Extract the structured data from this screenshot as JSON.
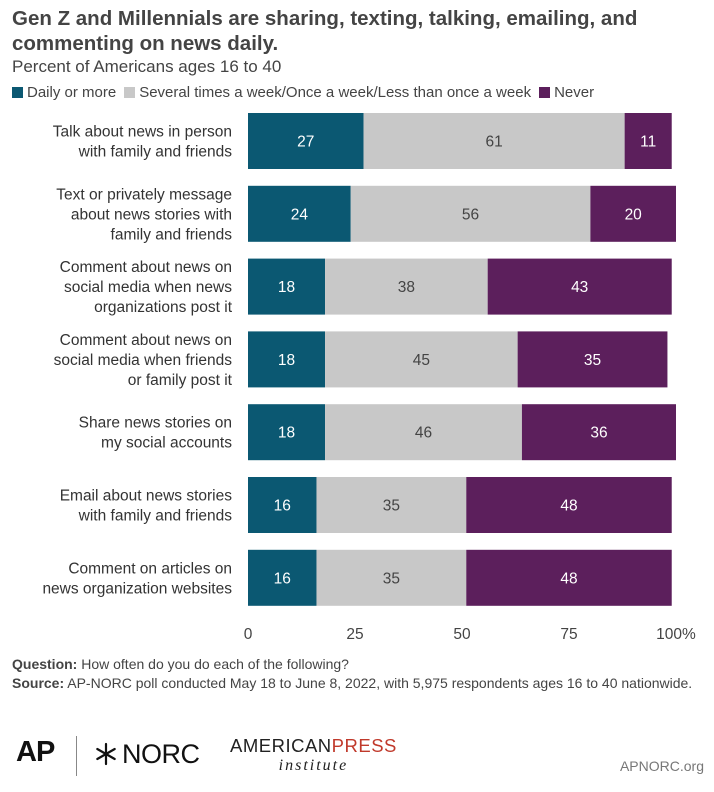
{
  "title": "Gen Z and Millennials are sharing, texting, talking, emailing, and commenting on news daily.",
  "subtitle": "Percent of Americans ages 16 to 40",
  "legend": [
    {
      "label": "Daily or more",
      "color": "#0b5872"
    },
    {
      "label": "Several times a week/Once a week/Less than once a week",
      "color": "#c8c8c8"
    },
    {
      "label": "Never",
      "color": "#5c1f5c"
    }
  ],
  "chart_data": {
    "type": "bar",
    "orientation": "horizontal",
    "stacked": true,
    "categories": [
      "Talk about news in person\nwith family and friends",
      "Text or privately message\nabout news stories with\nfamily and friends",
      "Comment about news on\nsocial media when news\norganizations post it",
      "Comment about news on\nsocial media when friends\nor family post it",
      "Share news stories on\nmy social accounts",
      "Email about news stories\nwith family and friends",
      "Comment on articles on\nnews organization websites"
    ],
    "series": [
      {
        "name": "Daily or more",
        "color": "#0b5872",
        "values": [
          27,
          24,
          18,
          18,
          18,
          16,
          16
        ]
      },
      {
        "name": "Several times a week/Once a week/Less than once a week",
        "color": "#c8c8c8",
        "values": [
          61,
          56,
          38,
          45,
          46,
          35,
          35
        ]
      },
      {
        "name": "Never",
        "color": "#5c1f5c",
        "values": [
          11,
          20,
          43,
          35,
          36,
          48,
          48
        ]
      }
    ],
    "xlim": [
      0,
      100
    ],
    "xticks": [
      "0",
      "25",
      "50",
      "75",
      "100%"
    ],
    "legend_position": "top"
  },
  "notes": {
    "question_label": "Question:",
    "question_text": "How often do you do each of the following?",
    "source_label": "Source:",
    "source_text": "AP-NORC poll conducted May 18 to June 8, 2022, with 5,975 respondents ages 16 to 40 nationwide."
  },
  "footer": {
    "ap": "AP",
    "norc": "NORC",
    "api_line1_a": "AMERICAN",
    "api_line1_b": "PRESS",
    "api_line2": "institute",
    "site": "APNORC.org"
  }
}
